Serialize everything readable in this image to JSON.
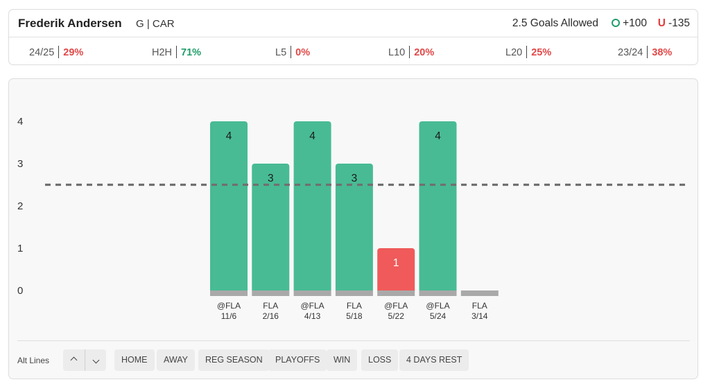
{
  "header": {
    "player_name": "Frederik Andersen",
    "player_meta": "G | CAR",
    "prop_line": "2.5 Goals Allowed",
    "over_odds": "+100",
    "under_letter": "U",
    "under_odds": "-135"
  },
  "stats": [
    {
      "label": "24/25",
      "value": "29%",
      "tone": "red"
    },
    {
      "label": "H2H",
      "value": "71%",
      "tone": "green"
    },
    {
      "label": "L5",
      "value": "0%",
      "tone": "red"
    },
    {
      "label": "L10",
      "value": "20%",
      "tone": "red"
    },
    {
      "label": "L20",
      "value": "25%",
      "tone": "red"
    },
    {
      "label": "23/24",
      "value": "38%",
      "tone": "red"
    }
  ],
  "colors": {
    "over_bar": "#48bb94",
    "under_bar": "#f05a5a",
    "base_bar": "#a9a9a9",
    "line": "#707070"
  },
  "chart_data": {
    "type": "bar",
    "categories": [
      "@FLA 11/6",
      "FLA 2/16",
      "@FLA 4/13",
      "FLA 5/18",
      "@FLA 5/22",
      "@FLA 5/24",
      "FLA 3/14"
    ],
    "category_lines": [
      [
        "@FLA",
        "11/6"
      ],
      [
        "FLA",
        "2/16"
      ],
      [
        "@FLA",
        "4/13"
      ],
      [
        "FLA",
        "5/18"
      ],
      [
        "@FLA",
        "5/22"
      ],
      [
        "@FLA",
        "5/24"
      ],
      [
        "FLA",
        "3/14"
      ]
    ],
    "values": [
      4,
      3,
      4,
      3,
      1,
      4,
      0
    ],
    "value_labels": [
      "4",
      "3",
      "4",
      "3",
      "1",
      "4",
      ""
    ],
    "outcomes": [
      "over",
      "over",
      "over",
      "over",
      "under",
      "over",
      "none"
    ],
    "reference_line": 2.5,
    "y_ticks": [
      "0",
      "1",
      "2",
      "3",
      "4"
    ],
    "ylim": [
      0,
      4
    ],
    "grid": false,
    "title": "",
    "xlabel": "",
    "ylabel": ""
  },
  "filters": {
    "alt_lines_label": "Alt Lines",
    "buttons": [
      "HOME",
      "AWAY",
      "REG SEASON",
      "PLAYOFFS",
      "WIN",
      "LOSS",
      "4 DAYS REST"
    ]
  }
}
